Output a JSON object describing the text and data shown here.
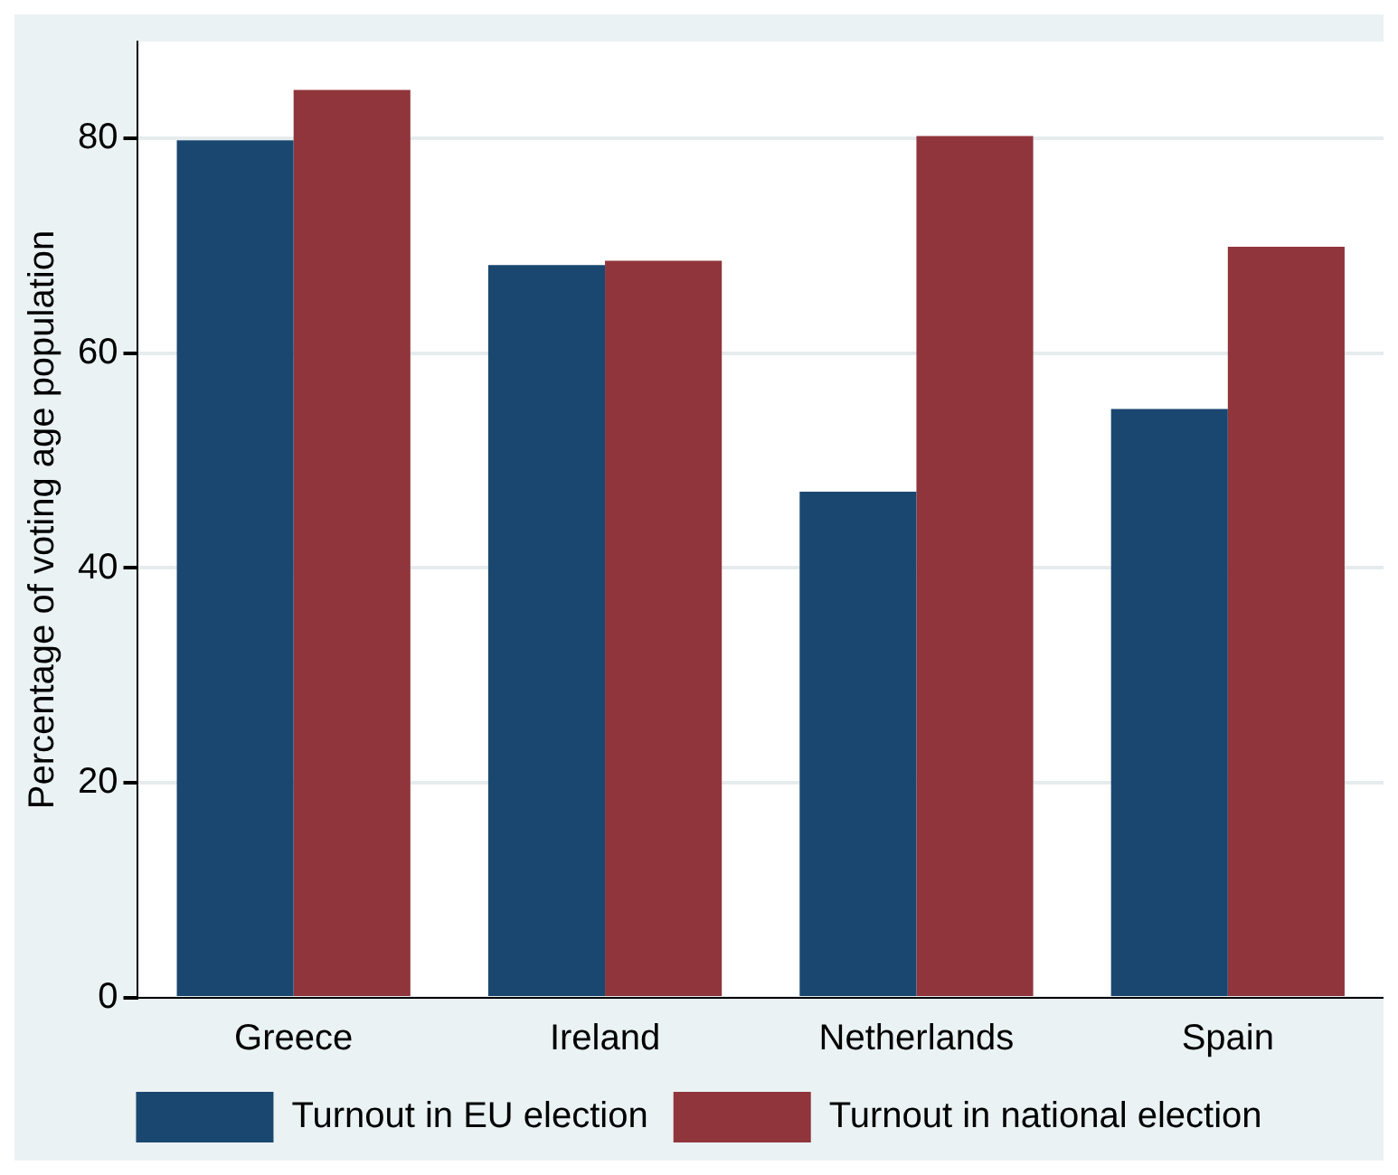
{
  "chart_data": {
    "type": "bar",
    "ylabel": "Percentage of voting age population",
    "categories": [
      "Greece",
      "Ireland",
      "Netherlands",
      "Spain"
    ],
    "series": [
      {
        "name": "Turnout in EU election",
        "color": "#1a476f",
        "values": [
          79.8,
          68.2,
          47.1,
          54.8
        ]
      },
      {
        "name": "Turnout in national election",
        "color": "#90353b",
        "values": [
          84.5,
          68.6,
          80.2,
          69.9
        ]
      }
    ],
    "ylim": [
      0,
      89
    ],
    "yticks": [
      0,
      20,
      40,
      60,
      80
    ],
    "grid": "y",
    "legend": "bottom"
  }
}
